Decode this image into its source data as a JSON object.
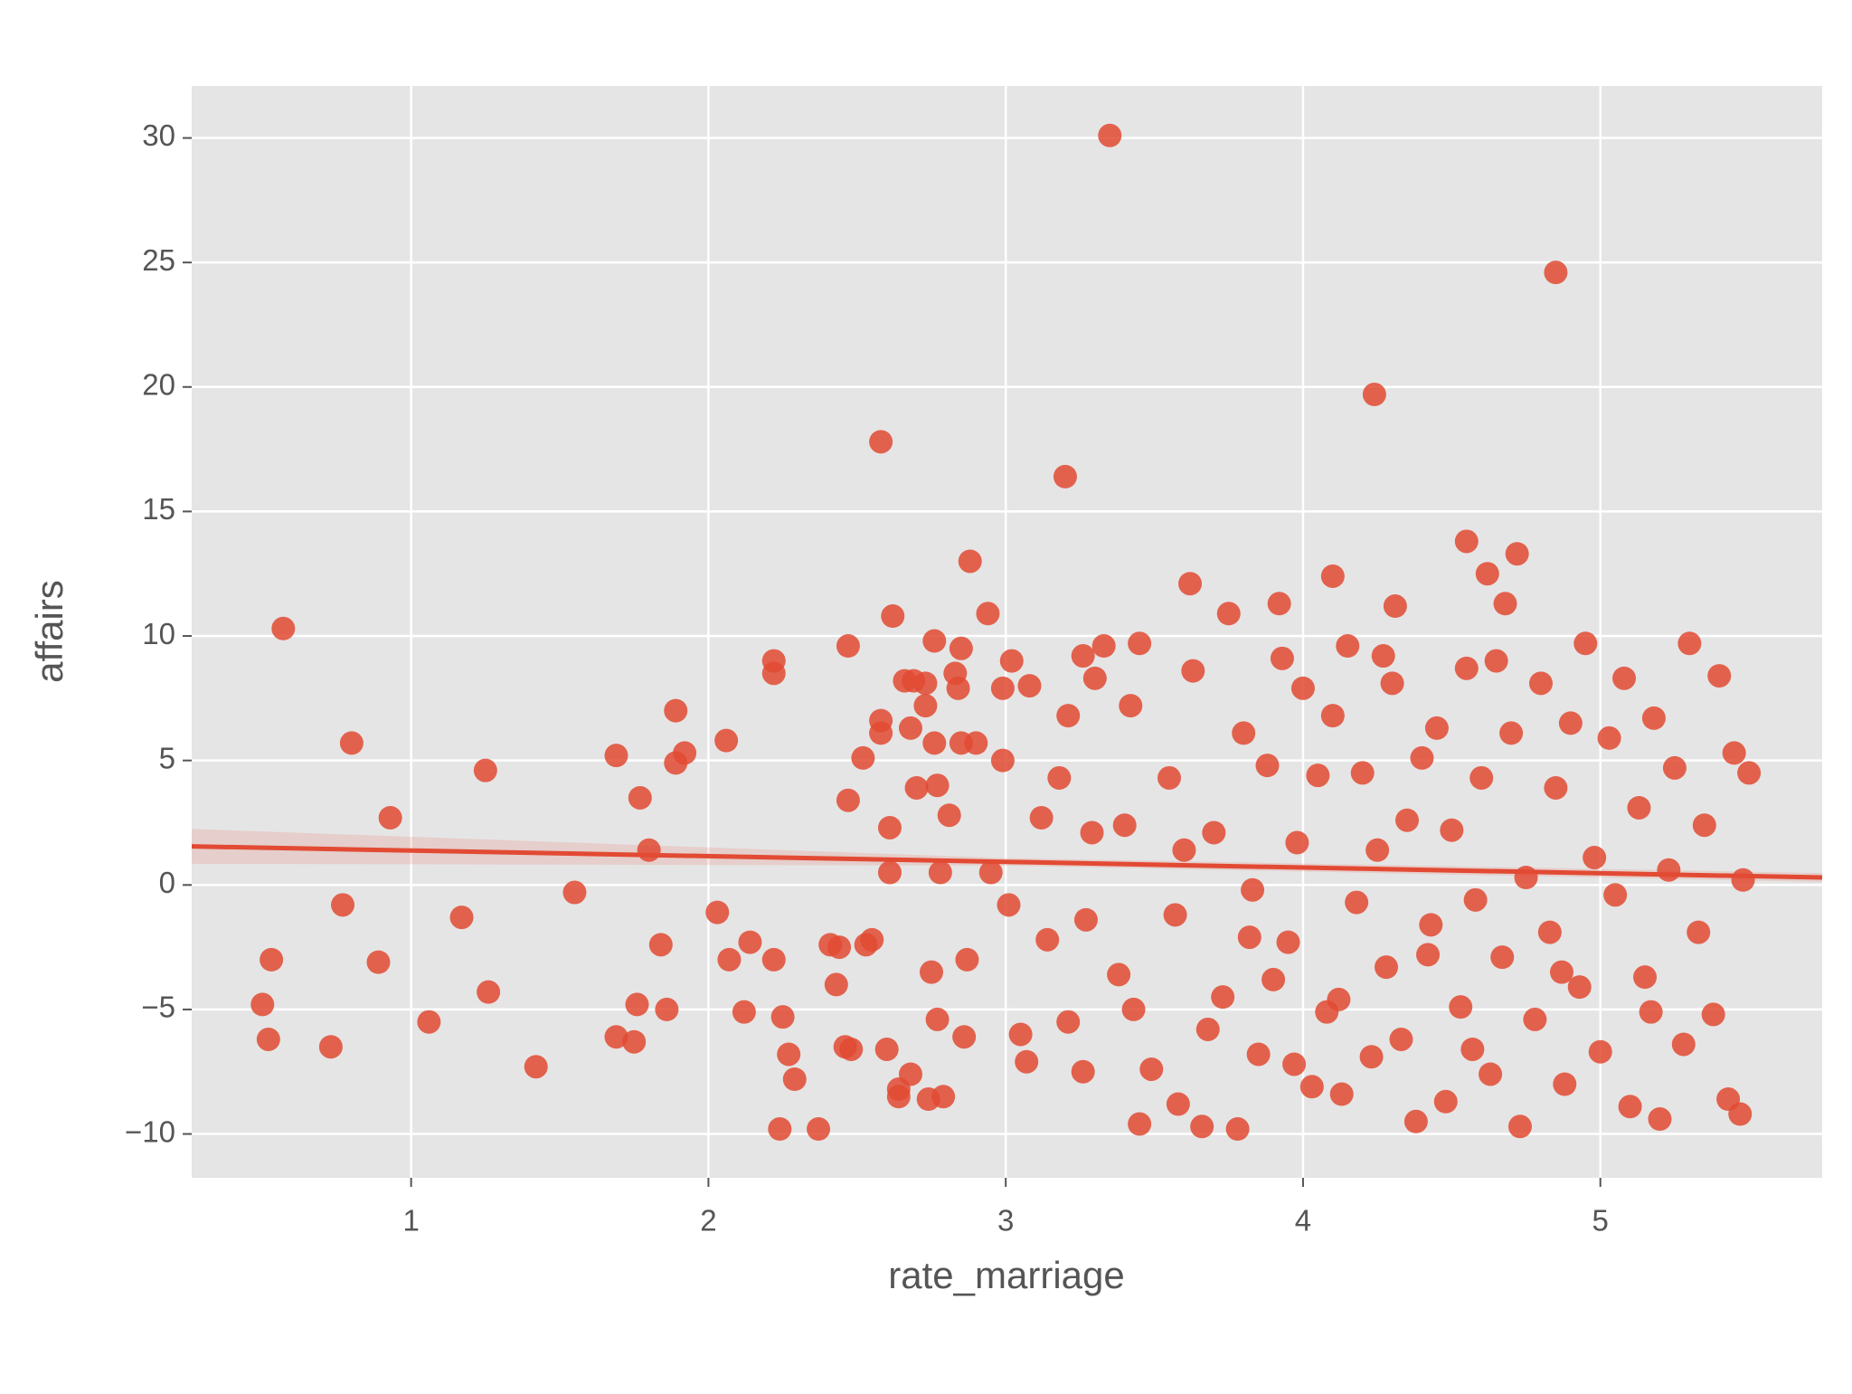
{
  "chart_data": {
    "type": "scatter",
    "x_label": "rate_marriage",
    "y_label": "affairs",
    "color": "#e24a33",
    "grid": true,
    "xlim": [
      0.262,
      5.746
    ],
    "ylim": [
      -11.76,
      32.09
    ],
    "xticks": [
      1,
      2,
      3,
      4,
      5
    ],
    "yticks": [
      {
        "value": -10,
        "label": "−10"
      },
      {
        "value": -5,
        "label": "−5"
      },
      0,
      5,
      10,
      15,
      20,
      25,
      30
    ],
    "x": [
      0.57,
      0.53,
      0.5,
      0.52,
      0.73,
      0.77,
      0.8,
      0.89,
      0.93,
      1.06,
      1.17,
      1.25,
      1.26,
      1.42,
      1.55,
      1.69,
      1.69,
      1.75,
      1.76,
      1.77,
      1.8,
      1.84,
      1.86,
      1.89,
      1.89,
      1.92,
      2.03,
      2.06,
      2.07,
      2.12,
      2.14,
      2.22,
      2.22,
      2.22,
      2.24,
      2.25,
      2.27,
      2.29,
      2.37,
      2.41,
      2.43,
      2.44,
      2.46,
      2.47,
      2.47,
      2.48,
      2.52,
      2.53,
      2.55,
      2.58,
      2.58,
      2.58,
      2.6,
      2.61,
      2.61,
      2.62,
      2.64,
      2.64,
      2.66,
      2.68,
      2.68,
      2.69,
      2.7,
      2.73,
      2.73,
      2.74,
      2.75,
      2.76,
      2.76,
      2.77,
      2.77,
      2.78,
      2.79,
      2.81,
      2.83,
      2.84,
      2.85,
      2.85,
      2.86,
      2.87,
      2.88,
      2.9,
      2.94,
      2.95,
      2.99,
      2.99,
      3.01,
      3.02,
      3.05,
      3.07,
      3.08,
      3.12,
      3.14,
      3.18,
      3.2,
      3.21,
      3.21,
      3.26,
      3.26,
      3.27,
      3.29,
      3.3,
      3.33,
      3.35,
      3.38,
      3.4,
      3.42,
      3.43,
      3.45,
      3.45,
      3.49,
      3.62,
      4.1,
      4.24,
      4.31,
      4.55,
      4.72,
      4.62,
      4.85,
      4.68,
      3.92,
      3.55,
      3.58,
      3.6,
      3.63,
      3.66,
      3.7,
      3.73,
      3.75,
      3.78,
      3.8,
      3.83,
      3.85,
      3.88,
      3.9,
      3.93,
      3.95,
      3.98,
      4.0,
      4.03,
      4.05,
      4.08,
      4.1,
      4.13,
      4.15,
      4.18,
      4.2,
      4.23,
      4.25,
      4.28,
      4.3,
      4.33,
      4.35,
      4.38,
      4.4,
      4.43,
      4.45,
      4.48,
      4.5,
      4.53,
      4.55,
      4.58,
      4.6,
      4.63,
      4.65,
      4.67,
      4.7,
      4.73,
      4.75,
      4.78,
      4.8,
      4.83,
      4.85,
      4.88,
      4.9,
      4.93,
      4.95,
      4.98,
      5.0,
      5.03,
      5.05,
      5.08,
      5.1,
      5.13,
      5.15,
      5.18,
      5.2,
      5.23,
      5.25,
      5.28,
      5.3,
      5.33,
      5.35,
      5.38,
      5.4,
      5.43,
      5.45,
      5.48,
      5.5,
      5.47,
      3.57,
      3.68,
      3.82,
      3.97,
      4.12,
      4.27,
      4.42,
      4.57,
      4.87,
      5.17
    ],
    "values": [
      10.3,
      -3,
      -4.8,
      -6.2,
      -6.5,
      -0.8,
      5.7,
      -3.1,
      2.7,
      -5.5,
      -1.3,
      4.6,
      -4.3,
      -7.3,
      -0.3,
      5.2,
      -6.1,
      -6.3,
      -4.8,
      3.5,
      1.4,
      -2.4,
      -5,
      7,
      4.9,
      5.3,
      -1.1,
      5.8,
      -3,
      -5.1,
      -2.3,
      9,
      8.5,
      -3,
      -9.8,
      -5.3,
      -6.8,
      -7.8,
      -9.8,
      -2.4,
      -4,
      -2.5,
      -6.5,
      3.4,
      9.6,
      -6.6,
      5.1,
      -2.4,
      -2.2,
      17.8,
      6.6,
      6.1,
      -6.6,
      2.3,
      0.5,
      10.8,
      -8.2,
      -8.5,
      8.2,
      -7.6,
      6.3,
      8.2,
      3.9,
      8.1,
      7.2,
      -8.6,
      -3.5,
      9.8,
      5.7,
      4,
      -5.4,
      0.5,
      -8.5,
      2.8,
      8.5,
      7.9,
      9.5,
      5.7,
      -6.1,
      -3,
      13,
      5.7,
      10.9,
      0.5,
      7.9,
      5,
      -0.8,
      9,
      -6,
      -7.1,
      8,
      2.7,
      -2.2,
      4.3,
      16.4,
      6.8,
      -5.5,
      9.2,
      -7.5,
      -1.4,
      2.1,
      8.3,
      9.6,
      30.1,
      -3.6,
      2.4,
      7.2,
      -5,
      9.7,
      -9.6,
      -7.4,
      12.1,
      12.4,
      19.7,
      11.2,
      13.8,
      13.3,
      12.5,
      24.6,
      11.3,
      11.3,
      4.3,
      -8.8,
      1.4,
      8.6,
      -9.7,
      2.1,
      -4.5,
      10.9,
      -9.8,
      6.1,
      -0.2,
      -6.8,
      4.8,
      -3.8,
      9.1,
      -2.3,
      1.7,
      7.9,
      -8.1,
      4.4,
      -5.1,
      6.8,
      -8.4,
      9.6,
      -0.7,
      4.5,
      -6.9,
      1.4,
      -3.3,
      8.1,
      -6.2,
      2.6,
      -9.5,
      5.1,
      -1.6,
      6.3,
      -8.7,
      2.2,
      -4.9,
      8.7,
      -0.6,
      4.3,
      -7.6,
      9,
      -2.9,
      6.1,
      -9.7,
      0.3,
      -5.4,
      8.1,
      -1.9,
      3.9,
      -8,
      6.5,
      -4.1,
      9.7,
      1.1,
      -6.7,
      5.9,
      -0.4,
      8.3,
      -8.9,
      3.1,
      -3.7,
      6.7,
      -9.4,
      0.6,
      4.7,
      -6.4,
      9.7,
      -1.9,
      2.4,
      -5.2,
      8.4,
      -8.6,
      5.3,
      0.2,
      4.5,
      -9.2,
      -1.2,
      -5.8,
      -2.1,
      -7.2,
      -4.6,
      9.2,
      -2.8,
      -6.6,
      -3.5,
      -5.1
    ],
    "fit": {
      "x": [
        0.262,
        3,
        5.746
      ],
      "values": [
        1.55,
        0.93,
        0.3
      ],
      "ci_lower": [
        0.85,
        0.78,
        0.12
      ],
      "ci_upper": [
        2.25,
        1.08,
        0.48
      ]
    }
  }
}
